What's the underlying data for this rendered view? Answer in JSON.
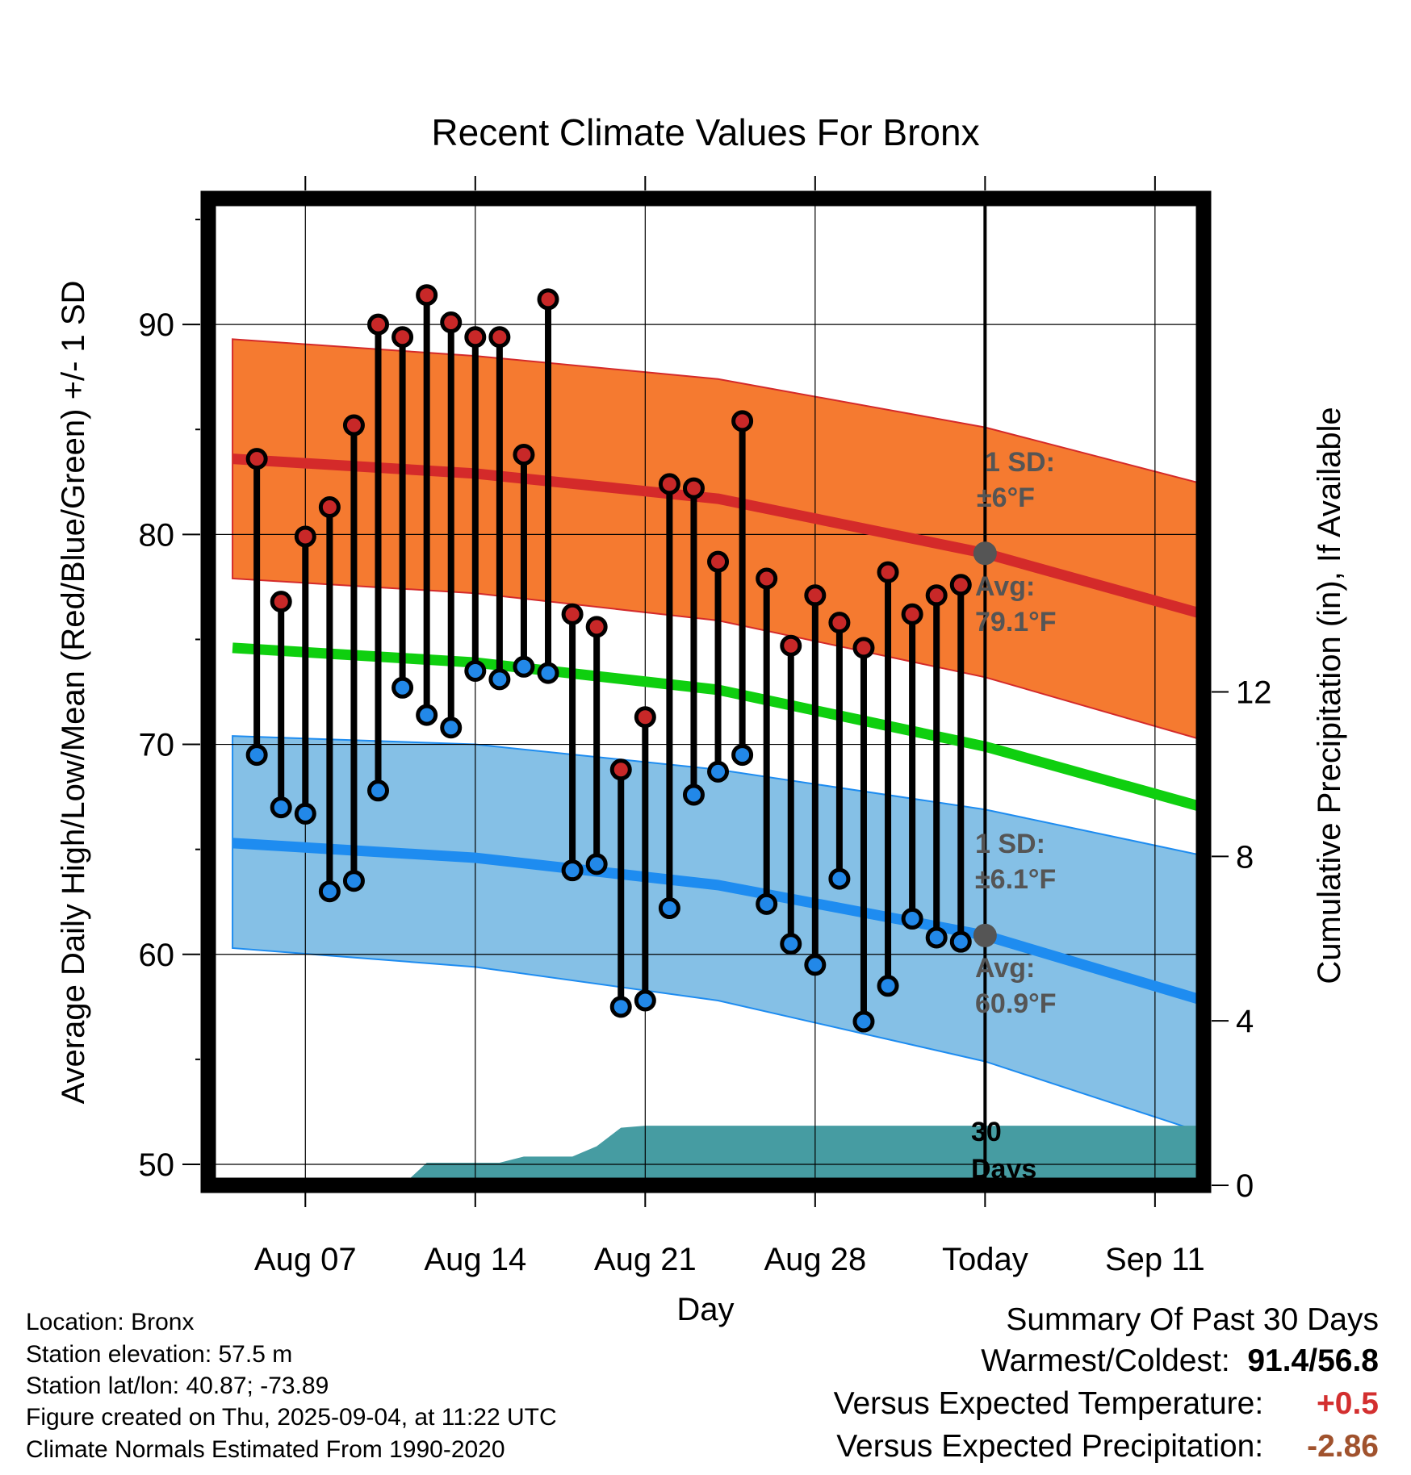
{
  "chart_data": {
    "type": "line",
    "title": "Recent Climate Values For Bronx",
    "xlabel": "Day",
    "ylabel": "Average Daily High/Low/Mean (Red/Blue/Green) +/- 1 SD",
    "y2label": "Cumulative Precipitation (in), If Available",
    "ylim": [
      49,
      96
    ],
    "y2lim": [
      0,
      24
    ],
    "yticks": [
      50,
      60,
      70,
      80,
      90
    ],
    "y2ticks": [
      0,
      4,
      8,
      12
    ],
    "xlim": [
      "2025-08-03",
      "2025-09-13"
    ],
    "xticks": [
      {
        "date": "2025-08-07",
        "label": "Aug 07"
      },
      {
        "date": "2025-08-14",
        "label": "Aug 14"
      },
      {
        "date": "2025-08-21",
        "label": "Aug 21"
      },
      {
        "date": "2025-08-28",
        "label": "Aug 28"
      },
      {
        "date": "2025-09-04",
        "label": "Today"
      },
      {
        "date": "2025-09-11",
        "label": "Sep 11"
      }
    ],
    "today": "2025-09-04",
    "grid": true,
    "observations": {
      "dates": [
        "2025-08-05",
        "2025-08-06",
        "2025-08-07",
        "2025-08-08",
        "2025-08-09",
        "2025-08-10",
        "2025-08-11",
        "2025-08-12",
        "2025-08-13",
        "2025-08-14",
        "2025-08-15",
        "2025-08-16",
        "2025-08-17",
        "2025-08-18",
        "2025-08-19",
        "2025-08-20",
        "2025-08-21",
        "2025-08-22",
        "2025-08-23",
        "2025-08-24",
        "2025-08-25",
        "2025-08-26",
        "2025-08-27",
        "2025-08-28",
        "2025-08-29",
        "2025-08-30",
        "2025-08-31",
        "2025-09-01",
        "2025-09-02",
        "2025-09-03"
      ],
      "high": [
        83.6,
        76.8,
        79.9,
        81.3,
        85.2,
        90.0,
        89.4,
        91.4,
        90.1,
        89.4,
        89.4,
        83.8,
        91.2,
        76.2,
        75.6,
        68.8,
        71.3,
        82.4,
        82.2,
        78.7,
        85.4,
        77.9,
        74.7,
        77.1,
        75.8,
        74.6,
        78.2,
        76.2,
        77.1,
        77.6
      ],
      "low": [
        69.5,
        67.0,
        66.7,
        63.0,
        63.5,
        67.8,
        72.7,
        71.4,
        70.8,
        73.5,
        73.1,
        73.7,
        73.4,
        64.0,
        64.3,
        57.5,
        57.8,
        62.2,
        67.6,
        68.7,
        69.5,
        62.4,
        60.5,
        59.5,
        63.6,
        56.8,
        58.5,
        61.7,
        60.8,
        60.6
      ]
    },
    "normals": {
      "dates": [
        "2025-08-04",
        "2025-08-14",
        "2025-08-24",
        "2025-09-04",
        "2025-09-13"
      ],
      "high_mean": [
        83.6,
        82.9,
        81.7,
        79.1,
        76.2
      ],
      "high_sd_upper": [
        89.3,
        88.5,
        87.4,
        85.1,
        82.4
      ],
      "high_sd_lower": [
        77.9,
        77.2,
        75.9,
        73.2,
        70.2
      ],
      "mean": [
        74.6,
        73.9,
        72.6,
        69.9,
        67.0
      ],
      "low_mean": [
        65.3,
        64.6,
        63.3,
        60.9,
        57.8
      ],
      "low_sd_upper": [
        70.4,
        70.0,
        68.8,
        66.9,
        64.7
      ],
      "low_sd_lower": [
        60.3,
        59.4,
        57.8,
        54.9,
        51.5
      ]
    },
    "precipitation": {
      "dates": [
        "2025-08-11",
        "2025-08-12",
        "2025-08-15",
        "2025-08-16",
        "2025-08-18",
        "2025-08-19",
        "2025-08-20",
        "2025-08-21",
        "2025-09-04",
        "2025-09-13"
      ],
      "cumulative": [
        0.0,
        0.55,
        0.55,
        0.7,
        0.7,
        0.95,
        1.4,
        1.45,
        1.45,
        1.45
      ]
    },
    "annotations": {
      "high_sd_line1": "1 SD:",
      "high_sd_line2": "±6°F",
      "high_avg_line1": "Avg:",
      "high_avg_line2": "79.1°F",
      "low_sd_line1": "1 SD:",
      "low_sd_line2": "±6.1°F",
      "low_avg_line1": "Avg:",
      "low_avg_line2": "60.9°F",
      "days_line1": "30",
      "days_line2": "Days"
    },
    "colors": {
      "high_band": "#f57a30",
      "high_line": "#d42a2a",
      "mean_line": "#0fcf0f",
      "low_band": "#85c0e6",
      "low_line": "#1e8cf0",
      "precip": "#469ca2",
      "high_dot": "#c82828",
      "low_dot": "#2288e8",
      "annotation": "#555555"
    }
  },
  "info": {
    "location": "Location: Bronx",
    "elevation": "Station elevation: 57.5 m",
    "latlon": "Station lat/lon: 40.87; -73.89",
    "created": "Figure created on Thu, 2025-09-04, at 11:22 UTC",
    "normals": "Climate Normals Estimated From 1990-2020"
  },
  "summary": {
    "title": "Summary Of Past 30 Days",
    "warm_cold_label": "Warmest/Coldest:",
    "warm_cold_value": "91.4/56.8",
    "temp_label": "Versus Expected Temperature:",
    "temp_value": "+0.5",
    "temp_color": "#d32f2f",
    "precip_label": "Versus Expected Precipitation:",
    "precip_value": "-2.86",
    "precip_color": "#a0522d"
  }
}
